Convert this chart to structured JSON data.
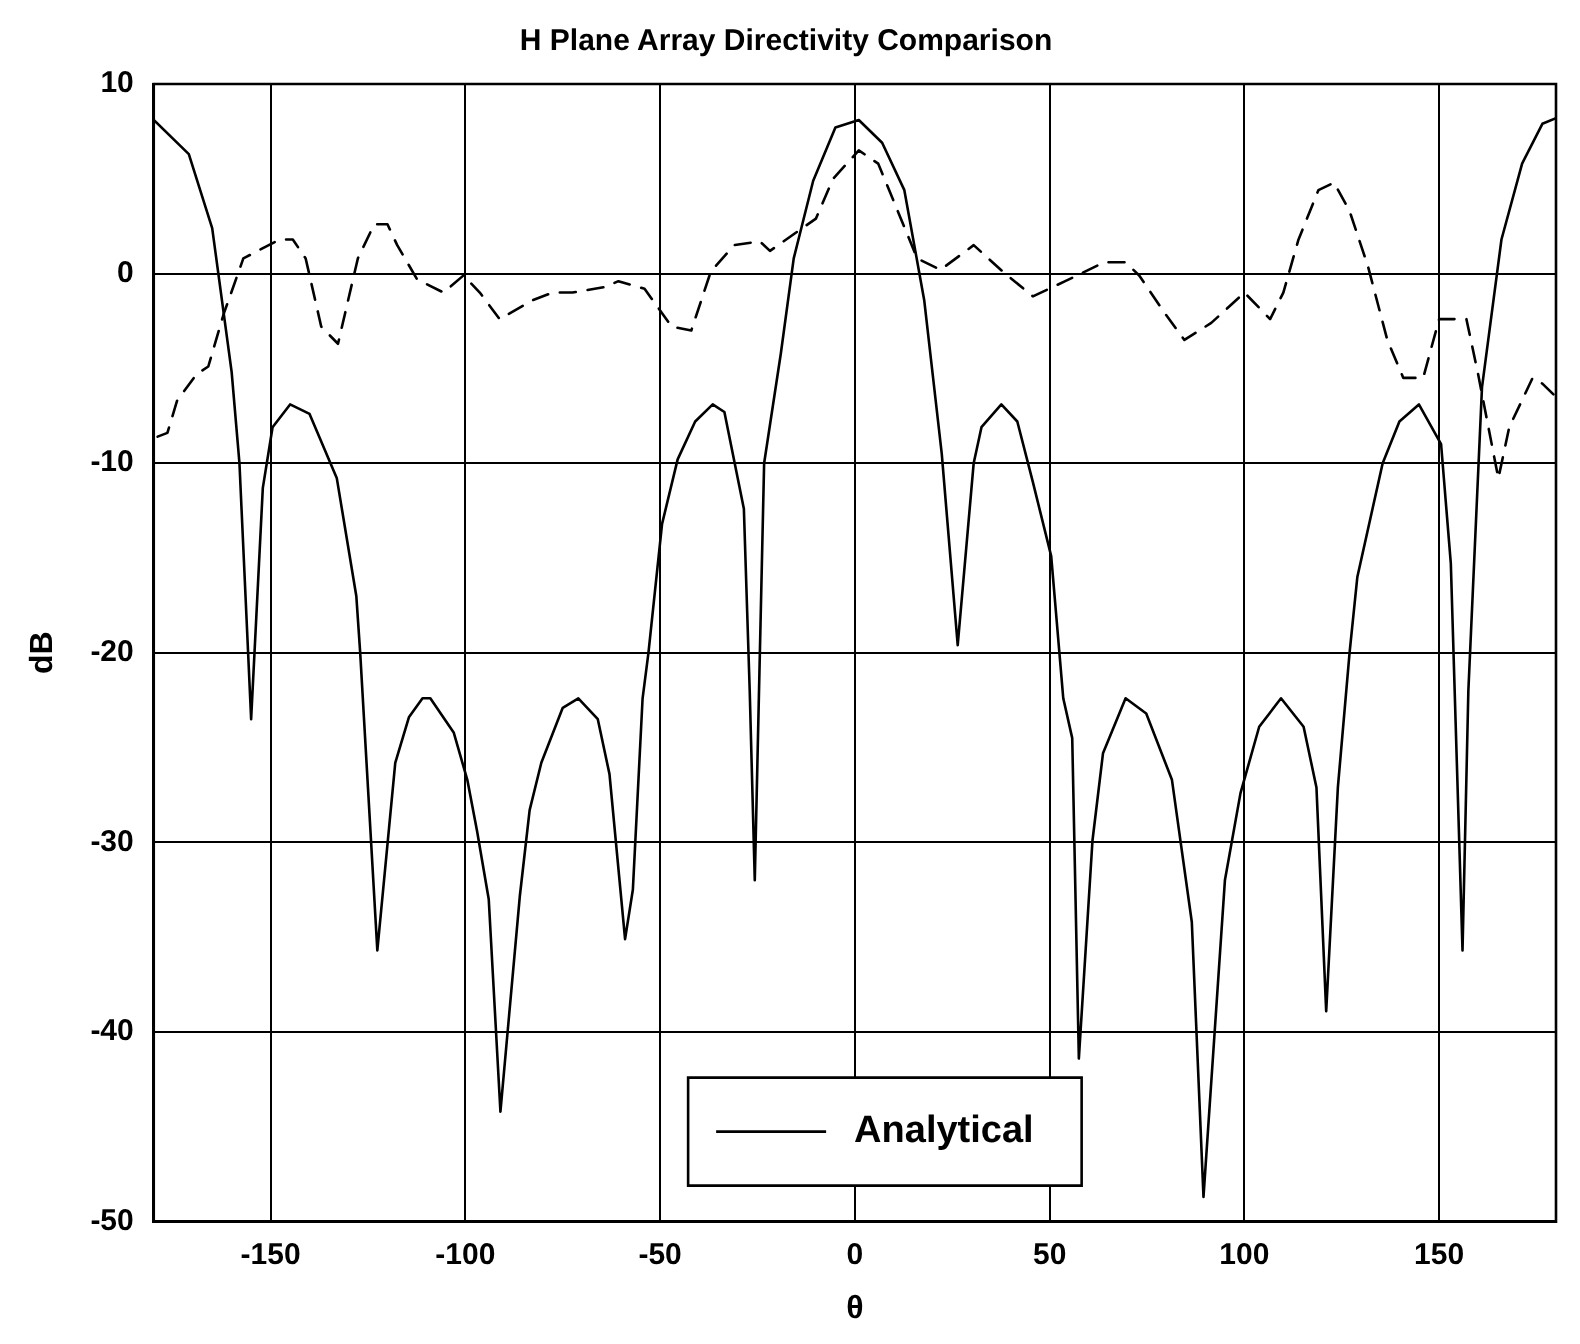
{
  "chart_data": {
    "type": "line",
    "title": "H Plane Array Directivity Comparison",
    "xlabel": "θ",
    "ylabel": "dB",
    "xlim": [
      -180,
      180
    ],
    "ylim": [
      -50,
      10
    ],
    "xticks": [
      -150,
      -100,
      -50,
      0,
      50,
      100,
      150
    ],
    "yticks": [
      -50,
      -40,
      -30,
      -20,
      -10,
      0,
      10
    ],
    "grid": true,
    "legend": "bottom",
    "marker": "none",
    "series": [
      {
        "name": "Analytical",
        "color": "#000000",
        "line_style": "solid",
        "x": [
          -180,
          -171,
          -165,
          -160,
          -158,
          -155,
          -152,
          -149.5,
          -145,
          -140,
          -133,
          -128,
          -127,
          -122.6,
          -118,
          -114.5,
          -111,
          -109,
          -103,
          -99.5,
          -97,
          -94,
          -91,
          -86,
          -83.5,
          -80.5,
          -75,
          -71,
          -66,
          -63,
          -59,
          -57,
          -54.5,
          -53,
          -49.5,
          -45.5,
          -41,
          -36.5,
          -33.5,
          -28.5,
          -27,
          -25.7,
          -23.3,
          -19,
          -15.7,
          -10.7,
          -5,
          1,
          7,
          12.7,
          17.8,
          22.3,
          26.4,
          30.5,
          32.5,
          37.6,
          41.7,
          45.7,
          50.4,
          53.5,
          55.8,
          57.5,
          61,
          63.7,
          69.5,
          74.8,
          81.4,
          86.5,
          89.5,
          95,
          99,
          103.8,
          109.4,
          115.2,
          118.5,
          121,
          124,
          127,
          129,
          135.5,
          139.8,
          144.8,
          150.5,
          153,
          156,
          157.5,
          161,
          166,
          171.3,
          176.5,
          180
        ],
        "values": [
          8.1,
          6.3,
          2.4,
          -5.2,
          -10,
          -23.5,
          -11.3,
          -8.1,
          -6.9,
          -7.4,
          -10.8,
          -17,
          -20,
          -35.7,
          -25.8,
          -23.4,
          -22.4,
          -22.4,
          -24.2,
          -26.7,
          -29.4,
          -33,
          -44.2,
          -32.8,
          -28.3,
          -25.8,
          -22.9,
          -22.4,
          -23.5,
          -26.4,
          -35.1,
          -32.5,
          -22.4,
          -20,
          -13.2,
          -9.8,
          -7.8,
          -6.9,
          -7.3,
          -12.4,
          -22,
          -32,
          -10,
          -4.2,
          0.8,
          4.9,
          7.7,
          8.1,
          6.9,
          4.4,
          -1.4,
          -9.5,
          -19.6,
          -10,
          -8.1,
          -6.9,
          -7.8,
          -11,
          -14.9,
          -22.4,
          -24.5,
          -41.4,
          -29.9,
          -25.3,
          -22.4,
          -23.2,
          -26.7,
          -34.2,
          -48.7,
          -32,
          -27.4,
          -23.9,
          -22.4,
          -23.9,
          -27.1,
          -38.9,
          -27.1,
          -20,
          -16,
          -10,
          -7.8,
          -6.9,
          -9,
          -15.3,
          -35.7,
          -22,
          -6,
          1.8,
          5.8,
          7.9,
          8.2
        ]
      },
      {
        "color": "#000000",
        "line_style": "dashed",
        "x": [
          -179,
          -176.5,
          -174,
          -169,
          -166,
          -162,
          -157,
          -147.7,
          -144.3,
          -141,
          -137,
          -132.7,
          -127.6,
          -123.4,
          -120,
          -117.5,
          -112.4,
          -105.6,
          -100.5,
          -96.3,
          -91.2,
          -82.7,
          -77.6,
          -72.5,
          -64,
          -60.7,
          -54,
          -47,
          -42,
          -37,
          -31,
          -24.4,
          -21.8,
          -10,
          -5.6,
          1,
          6,
          11,
          16,
          22,
          30.5,
          38,
          45.7,
          54,
          64,
          69.5,
          73,
          79.6,
          84.6,
          91.5,
          100,
          106.6,
          110,
          113.9,
          119,
          123,
          127,
          131.7,
          136.7,
          140.8,
          145.9,
          150,
          157,
          160,
          165.2,
          168,
          174,
          176.5,
          180
        ],
        "values": [
          -8.6,
          -8.4,
          -6.7,
          -5.3,
          -4.9,
          -2.1,
          0.8,
          1.8,
          1.8,
          0.8,
          -2.8,
          -3.7,
          0.8,
          2.6,
          2.6,
          1.5,
          -0.3,
          -1,
          -0.1,
          -1,
          -2.4,
          -1.4,
          -1,
          -1,
          -0.7,
          -0.4,
          -0.8,
          -2.8,
          -3,
          0.1,
          1.5,
          1.7,
          1.2,
          2.9,
          5,
          6.5,
          5.8,
          3.3,
          0.8,
          0.2,
          1.5,
          0.1,
          -1.2,
          -0.4,
          0.6,
          0.6,
          -0.1,
          -2.1,
          -3.5,
          -2.6,
          -1,
          -2.4,
          -1,
          1.8,
          4.4,
          4.8,
          3.3,
          0.4,
          -3.5,
          -5.5,
          -5.5,
          -2.4,
          -2.4,
          -5.3,
          -10.8,
          -8.1,
          -5.5,
          -5.8,
          -6.5
        ]
      }
    ]
  }
}
